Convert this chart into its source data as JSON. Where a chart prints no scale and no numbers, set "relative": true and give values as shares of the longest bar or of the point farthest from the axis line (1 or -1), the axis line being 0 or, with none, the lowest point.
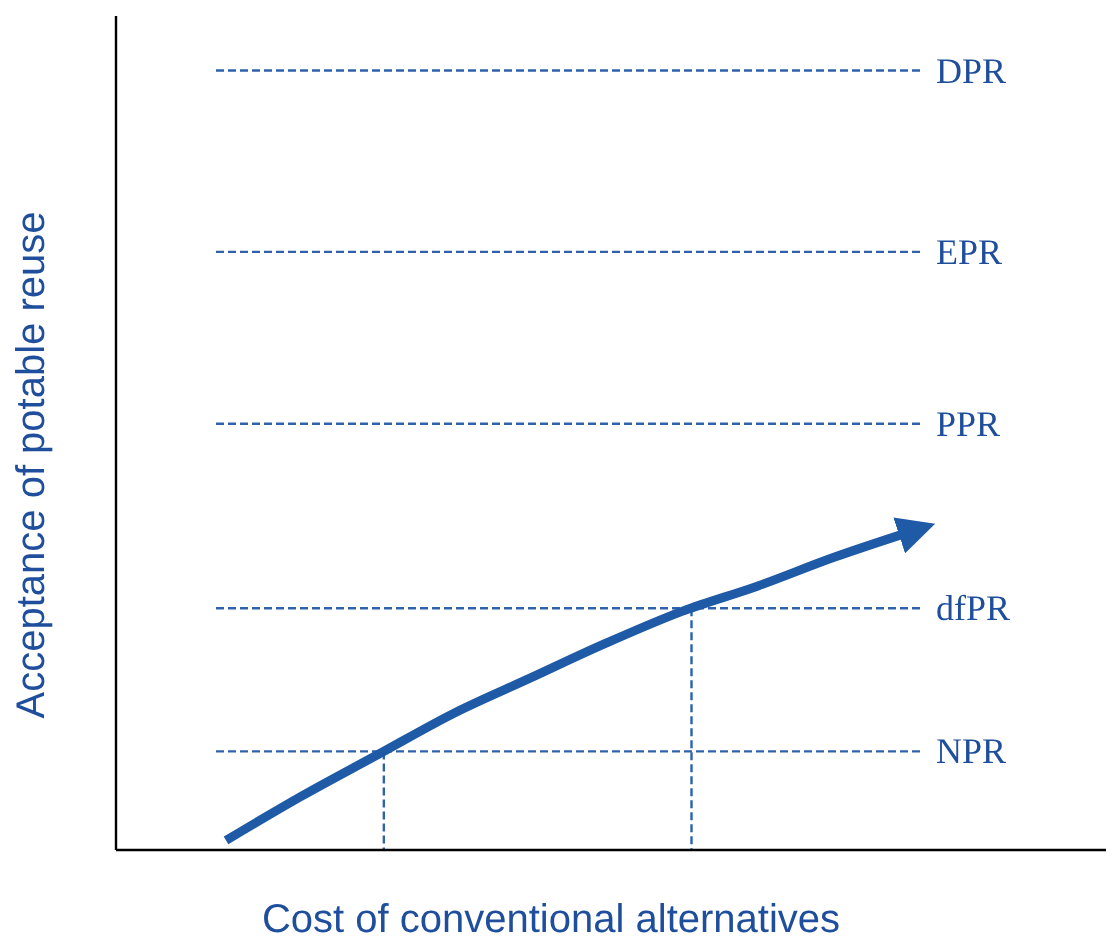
{
  "chart_data": {
    "type": "line",
    "relative": true,
    "xlabel": "Cost of conventional alternatives",
    "ylabel": "Acceptance of potable reuse",
    "categories": [
      null,
      null,
      null,
      null,
      null,
      null,
      null,
      null,
      null,
      null
    ],
    "series": [
      {
        "color": "#1f5aa6",
        "values": [
          0.03,
          0.17,
          0.3,
          0.43,
          0.54,
          0.65,
          0.75,
          0.83,
          0.92,
          1
        ]
      }
    ],
    "ref_lines": [
      {
        "axis": "y",
        "value": 2.45,
        "label": "DPR",
        "color": "#2e62ad",
        "line_style": "dashed"
      },
      {
        "axis": "y",
        "value": 1.88,
        "label": "EPR",
        "color": "#2e62ad",
        "line_style": "dashed"
      },
      {
        "axis": "y",
        "value": 1.34,
        "label": "PPR",
        "color": "#2e62ad",
        "line_style": "dashed"
      },
      {
        "axis": "y",
        "value": 0.76,
        "label": "dfPR",
        "color": "#2e62ad",
        "line_style": "dashed"
      },
      {
        "axis": "y",
        "value": 0.31,
        "label": "NPR",
        "color": "#2e62ad",
        "line_style": "dashed"
      }
    ],
    "marker": "none",
    "line_style": "solid"
  }
}
